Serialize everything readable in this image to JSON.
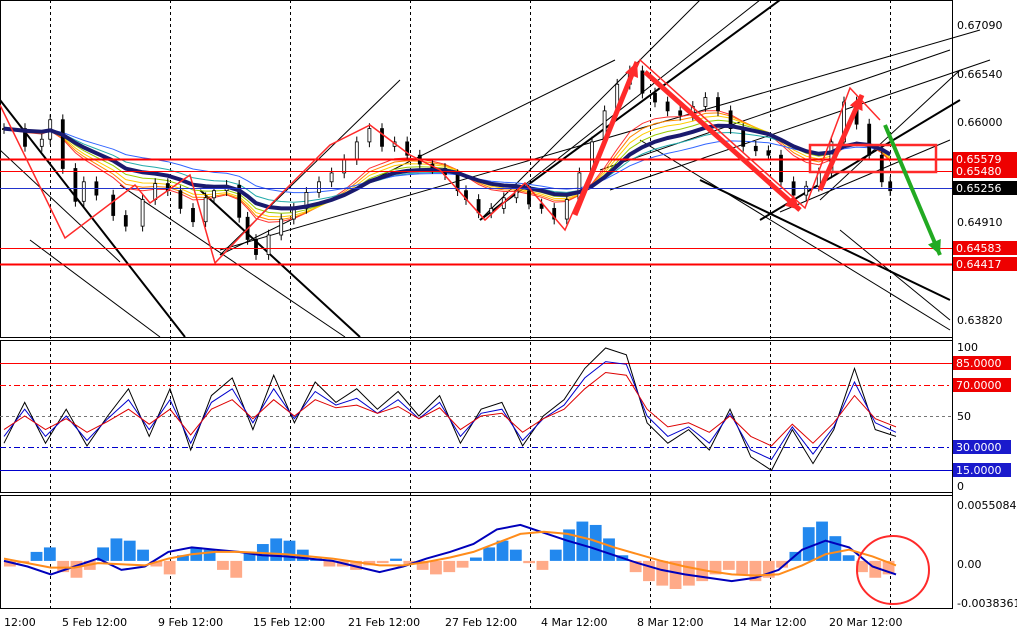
{
  "chart_data": [
    {
      "type": "candlestick",
      "panel": "price",
      "y_ticks": [
        "0.67090",
        "0.66540",
        "0.66000",
        "0.65256",
        "0.64910",
        "0.63820"
      ],
      "ylim": [
        0.6355,
        0.6735
      ],
      "x_labels": [
        "12:00",
        "5 Feb 12:00",
        "9 Feb 12:00",
        "15 Feb 12:00",
        "21 Feb 12:00",
        "27 Feb 12:00",
        "4 Mar 12:00",
        "8 Mar 12:00",
        "14 Mar 12:00",
        "20 Mar 12:00"
      ],
      "close_path": [
        [
          0,
          0.659
        ],
        [
          5,
          0.657
        ],
        [
          9,
          0.6578
        ],
        [
          11,
          0.66
        ],
        [
          14,
          0.6545
        ],
        [
          17,
          0.6508
        ],
        [
          19,
          0.653
        ],
        [
          22,
          0.6515
        ],
        [
          26,
          0.6492
        ],
        [
          29,
          0.648
        ],
        [
          33,
          0.651
        ],
        [
          36,
          0.6528
        ],
        [
          39,
          0.652
        ],
        [
          42,
          0.65
        ],
        [
          45,
          0.6485
        ],
        [
          48,
          0.6512
        ],
        [
          50,
          0.652
        ],
        [
          53,
          0.6526
        ],
        [
          56,
          0.649
        ],
        [
          58,
          0.6465
        ],
        [
          60,
          0.6448
        ],
        [
          63,
          0.647
        ],
        [
          66,
          0.6488
        ],
        [
          69,
          0.65
        ],
        [
          72,
          0.6518
        ],
        [
          75,
          0.653
        ],
        [
          78,
          0.654
        ],
        [
          81,
          0.6555
        ],
        [
          84,
          0.6575
        ],
        [
          87,
          0.659
        ],
        [
          90,
          0.657
        ],
        [
          93,
          0.6575
        ],
        [
          96,
          0.656
        ],
        [
          99,
          0.655
        ],
        [
          102,
          0.6545
        ],
        [
          105,
          0.6538
        ],
        [
          108,
          0.652
        ],
        [
          110,
          0.651
        ],
        [
          113,
          0.6495
        ],
        [
          116,
          0.65
        ],
        [
          119,
          0.6512
        ],
        [
          122,
          0.652
        ],
        [
          125,
          0.6505
        ],
        [
          128,
          0.65
        ],
        [
          131,
          0.6488
        ],
        [
          134,
          0.651
        ],
        [
          137,
          0.654
        ],
        [
          140,
          0.6575
        ],
        [
          143,
          0.661
        ],
        [
          146,
          0.664
        ],
        [
          149,
          0.6655
        ],
        [
          152,
          0.663
        ],
        [
          155,
          0.662
        ],
        [
          158,
          0.661
        ],
        [
          161,
          0.6605
        ],
        [
          164,
          0.6615
        ],
        [
          167,
          0.6625
        ],
        [
          170,
          0.661
        ],
        [
          173,
          0.659
        ],
        [
          176,
          0.657
        ],
        [
          179,
          0.6565
        ],
        [
          182,
          0.656
        ],
        [
          185,
          0.653
        ],
        [
          188,
          0.6515
        ],
        [
          191,
          0.6525
        ],
        [
          194,
          0.654
        ],
        [
          197,
          0.6575
        ],
        [
          200,
          0.662
        ],
        [
          203,
          0.6595
        ],
        [
          206,
          0.656
        ],
        [
          209,
          0.653
        ],
        [
          211,
          0.652
        ]
      ],
      "horizontal_levels": [
        {
          "label": "0.65579",
          "color": "#ff0000",
          "style": "solid-double"
        },
        {
          "label": "0.65480",
          "color": "#ff0000",
          "style": "solid"
        },
        {
          "label": "0.65256",
          "color": "#2233cc",
          "style": "solid",
          "current_price": true
        },
        {
          "label": "0.64583",
          "color": "#ff0000",
          "style": "solid"
        },
        {
          "label": "0.64417",
          "color": "#ff0000",
          "style": "solid-double"
        }
      ],
      "moving_average_color": "#1a1a6e",
      "ribbon": true
    },
    {
      "type": "line",
      "panel": "oscillator",
      "ylim": [
        0,
        100
      ],
      "y_ticks": [
        "100",
        "50",
        "0"
      ],
      "levels": [
        {
          "label": "85.0000",
          "color": "#ff0000",
          "style": "solid"
        },
        {
          "label": "70.0000",
          "color": "#ff0000",
          "style": "dashdot"
        },
        {
          "label": "30.0000",
          "color": "#0000cc",
          "style": "dashdot"
        },
        {
          "label": "15.0000",
          "color": "#0000cc",
          "style": "solid"
        }
      ],
      "series": [
        {
          "color": "#000000",
          "values": [
            30,
            60,
            30,
            55,
            28,
            50,
            70,
            35,
            70,
            25,
            65,
            78,
            40,
            80,
            45,
            75,
            60,
            70,
            55,
            68,
            50,
            65,
            30,
            55,
            60,
            28,
            50,
            62,
            85,
            100,
            95,
            45,
            30,
            40,
            25,
            55,
            20,
            10,
            40,
            15,
            40,
            85,
            40,
            35
          ]
        },
        {
          "color": "#0000cc",
          "values": [
            35,
            55,
            35,
            50,
            32,
            48,
            62,
            40,
            62,
            30,
            60,
            70,
            45,
            70,
            48,
            68,
            58,
            63,
            52,
            62,
            48,
            60,
            35,
            52,
            55,
            32,
            48,
            58,
            78,
            90,
            88,
            50,
            35,
            42,
            30,
            52,
            25,
            18,
            42,
            22,
            42,
            75,
            45,
            38
          ]
        },
        {
          "color": "#dd0000",
          "values": [
            40,
            50,
            40,
            48,
            38,
            46,
            55,
            44,
            55,
            36,
            55,
            62,
            48,
            62,
            50,
            62,
            56,
            58,
            52,
            57,
            48,
            56,
            40,
            50,
            52,
            38,
            48,
            55,
            70,
            82,
            80,
            55,
            42,
            45,
            38,
            50,
            35,
            28,
            44,
            30,
            45,
            65,
            48,
            42
          ]
        }
      ]
    },
    {
      "type": "macd",
      "panel": "macd",
      "y_ticks": [
        "0.0055084",
        "0.00",
        "-0.0038361"
      ],
      "ylim": [
        -0.0038361,
        0.0055084
      ],
      "histogram": [
        -0.0005,
        -0.0002,
        0.0008,
        0.0012,
        -0.001,
        -0.0015,
        -0.0008,
        0.0012,
        0.002,
        0.0018,
        0.001,
        -0.0005,
        -0.0012,
        0.0005,
        0.0012,
        0.001,
        -0.0008,
        -0.0015,
        0.0008,
        0.0015,
        0.002,
        0.0018,
        0.001,
        0.0002,
        -0.0005,
        -0.0005,
        -0.0008,
        -0.0004,
        -0.0002,
        0.0002,
        -0.0003,
        -0.0008,
        -0.0012,
        -0.001,
        -0.0006,
        0.0003,
        0.0012,
        0.0018,
        0.001,
        -0.0002,
        -0.0008,
        0.001,
        0.0028,
        0.0035,
        0.0032,
        0.002,
        0.0005,
        -0.001,
        -0.0018,
        -0.0022,
        -0.0025,
        -0.0022,
        -0.0018,
        -0.0012,
        -0.0008,
        -0.0012,
        -0.0018,
        -0.0015,
        -0.0006,
        0.0008,
        0.003,
        0.0035,
        0.0022,
        0.0005,
        -0.001,
        -0.0015,
        -0.0012
      ],
      "macd_line": [
        0.0,
        -0.0005,
        -0.0012,
        -0.0005,
        0.0002,
        -0.0008,
        -0.0005,
        0.0008,
        0.0012,
        0.001,
        0.0008,
        0.0005,
        0.0004,
        0.0002,
        0.0,
        -0.0005,
        -0.001,
        -0.0005,
        0.0002,
        0.0008,
        0.0015,
        0.0028,
        0.0032,
        0.0025,
        0.0018,
        0.0012,
        0.0005,
        -0.0002,
        -0.0008,
        -0.0012,
        -0.0015,
        -0.0018,
        -0.0015,
        -0.0008,
        0.001,
        0.0018,
        0.0012,
        -0.0005,
        -0.0012
      ],
      "signal_line": [
        0.0002,
        -0.0002,
        -0.0006,
        -0.0006,
        -0.0002,
        -0.0003,
        -0.0004,
        0.0002,
        0.0006,
        0.0008,
        0.0008,
        0.0007,
        0.0006,
        0.0004,
        0.0002,
        -0.0001,
        -0.0004,
        -0.0004,
        -0.0001,
        0.0003,
        0.0008,
        0.0016,
        0.0024,
        0.0026,
        0.0024,
        0.0019,
        0.0012,
        0.0006,
        0.0,
        -0.0005,
        -0.0009,
        -0.0012,
        -0.0013,
        -0.0012,
        -0.0004,
        0.0006,
        0.001,
        0.0004,
        -0.0004
      ],
      "colors": {
        "hist_positive": "#2288ee",
        "hist_negative": "#ffaa88",
        "macd": "#0000bb",
        "signal": "#ff8c1a"
      }
    }
  ],
  "colors": {
    "grid": "#000000",
    "annotation_red": "#ff2a2a",
    "annotation_green": "#22aa22",
    "trendline": "#000000",
    "level_tag_red": "#ee0000",
    "level_tag_blue": "#1a1acc",
    "current_tag": "#000000"
  }
}
